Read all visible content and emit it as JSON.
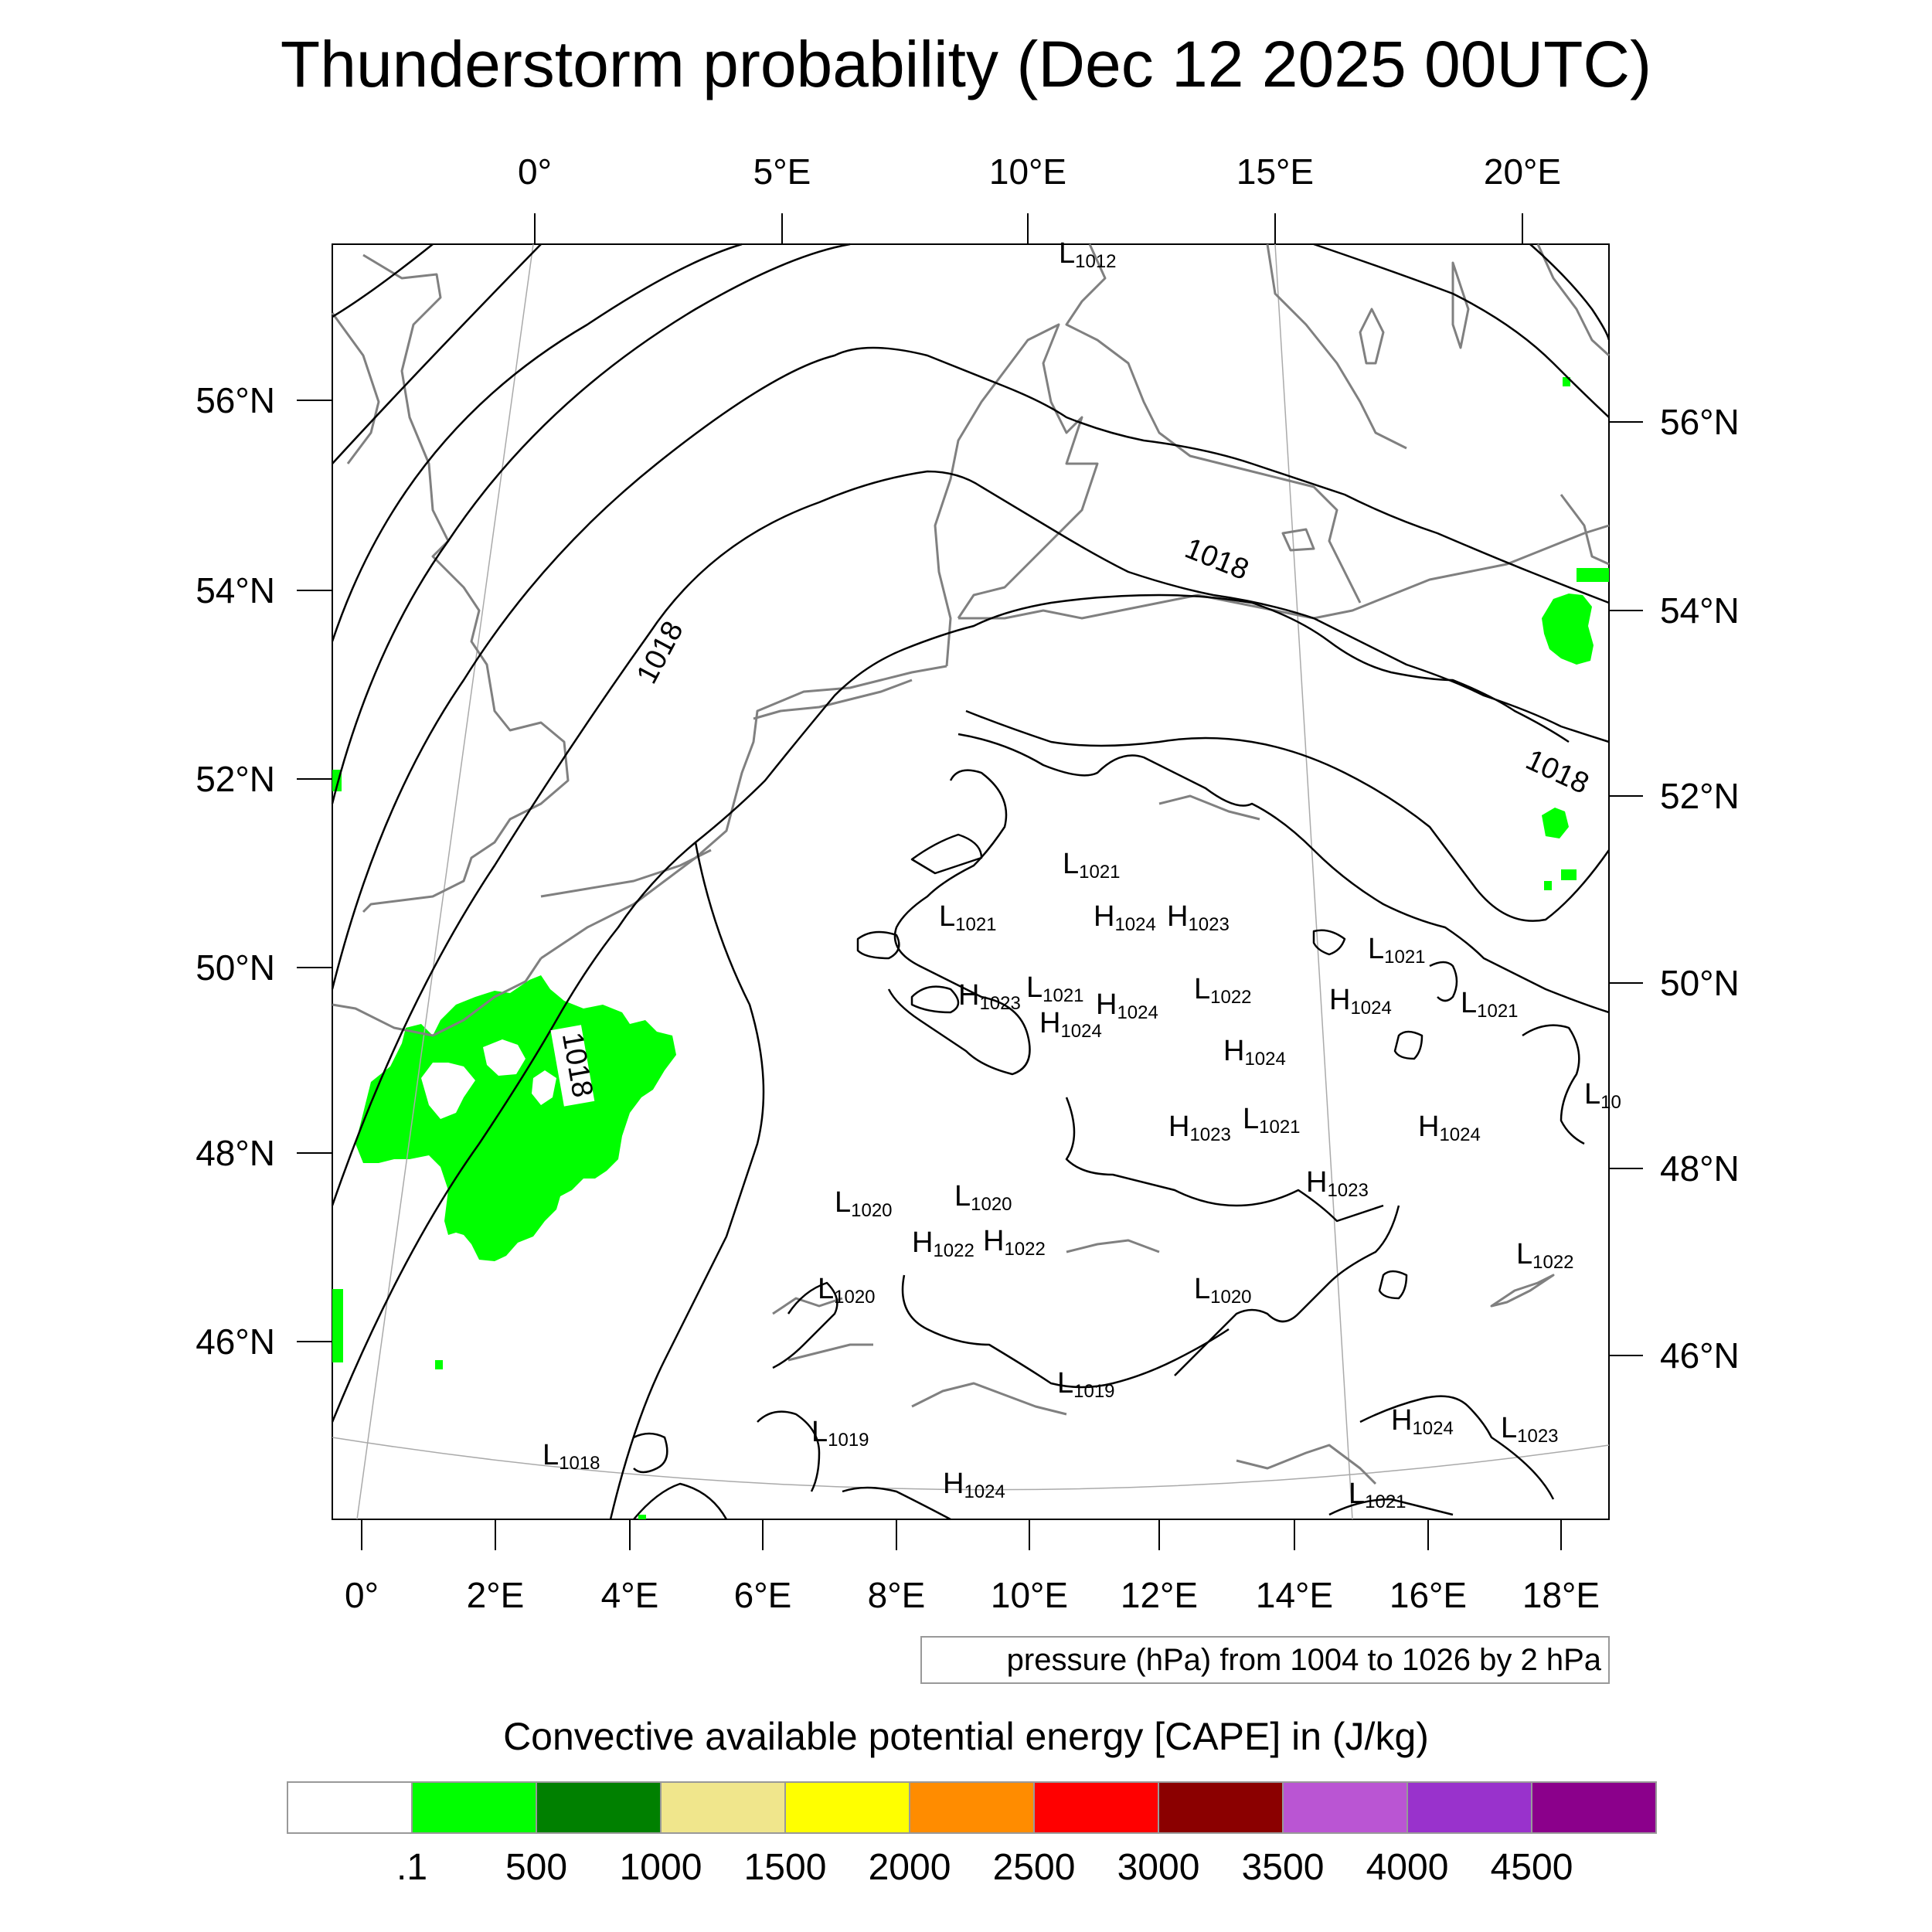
{
  "title": "Thunderstorm probability (Dec 12 2025 00UTC)",
  "top_axis_labels": [
    "0°",
    "5°E",
    "10°E",
    "15°E",
    "20°E"
  ],
  "bottom_axis_labels": [
    "0°",
    "2°E",
    "4°E",
    "6°E",
    "8°E",
    "10°E",
    "12°E",
    "14°E",
    "16°E",
    "18°E"
  ],
  "left_axis_labels": [
    "56°N",
    "54°N",
    "52°N",
    "50°N",
    "48°N",
    "46°N"
  ],
  "right_axis_labels": [
    "56°N",
    "54°N",
    "52°N",
    "50°N",
    "48°N",
    "46°N"
  ],
  "isobar_labels": [
    "1018",
    "1018",
    "1018",
    "1018"
  ],
  "pressure_centers": [
    {
      "type": "L",
      "value": "1012"
    },
    {
      "type": "L",
      "value": "1021"
    },
    {
      "type": "L",
      "value": "1021"
    },
    {
      "type": "H",
      "value": "1024"
    },
    {
      "type": "H",
      "value": "1023"
    },
    {
      "type": "L",
      "value": "1021"
    },
    {
      "type": "H",
      "value": "1023"
    },
    {
      "type": "L",
      "value": "1021"
    },
    {
      "type": "H",
      "value": "1024"
    },
    {
      "type": "L",
      "value": "1022"
    },
    {
      "type": "H",
      "value": "1024"
    },
    {
      "type": "L",
      "value": "1021"
    },
    {
      "type": "H",
      "value": "1024"
    },
    {
      "type": "H",
      "value": "1024"
    },
    {
      "type": "H",
      "value": "1023"
    },
    {
      "type": "L",
      "value": "1021"
    },
    {
      "type": "H",
      "value": "1024"
    },
    {
      "type": "L",
      "value": "10"
    },
    {
      "type": "L",
      "value": "1020"
    },
    {
      "type": "L",
      "value": "1020"
    },
    {
      "type": "H",
      "value": "1023"
    },
    {
      "type": "H",
      "value": "1022"
    },
    {
      "type": "H",
      "value": "1022"
    },
    {
      "type": "L",
      "value": "1020"
    },
    {
      "type": "L",
      "value": "1020"
    },
    {
      "type": "L",
      "value": "1022"
    },
    {
      "type": "L",
      "value": "1019"
    },
    {
      "type": "L",
      "value": "1019"
    },
    {
      "type": "H",
      "value": "1024"
    },
    {
      "type": "L",
      "value": "1023"
    },
    {
      "type": "L",
      "value": "1018"
    },
    {
      "type": "H",
      "value": "1024"
    },
    {
      "type": "L",
      "value": "1021"
    }
  ],
  "contour_info": "pressure (hPa) from 1004 to 1026 by 2 hPa",
  "colorbar": {
    "title": "Convective available potential energy [CAPE] in (J/kg)",
    "colors": [
      "#ffffff",
      "#00ff00",
      "#008000",
      "#f0e68c",
      "#ffff00",
      "#ff8c00",
      "#ff0000",
      "#8b0000",
      "#ba55d3",
      "#9932cc",
      "#8b008b"
    ],
    "labels": [
      ".1",
      "500",
      "1000",
      "1500",
      "2000",
      "2500",
      "3000",
      "3500",
      "4000",
      "4500"
    ]
  },
  "cape_fill_color": "#00ff00"
}
